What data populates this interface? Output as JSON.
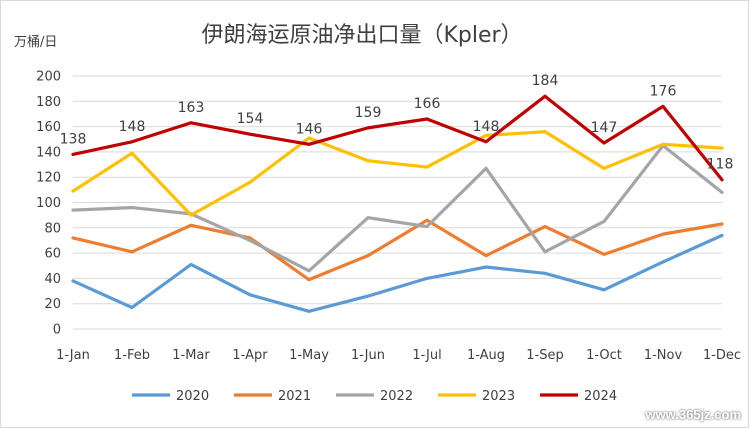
{
  "chart_data": {
    "type": "line",
    "title": "伊朗海运原油净出口量（Kpler）",
    "ylabel": "万桶/日",
    "xlabel": "",
    "ylim": [
      0,
      200
    ],
    "yticks": [
      0,
      20,
      40,
      60,
      80,
      100,
      120,
      140,
      160,
      180,
      200
    ],
    "grid": true,
    "legend_position": "bottom",
    "categories": [
      "1-Jan",
      "1-Feb",
      "1-Mar",
      "1-Apr",
      "1-May",
      "1-Jun",
      "1-Jul",
      "1-Aug",
      "1-Sep",
      "1-Oct",
      "1-Nov",
      "1-Dec"
    ],
    "series": [
      {
        "name": "2020",
        "color": "#5b9bd5",
        "values": [
          38,
          17,
          51,
          27,
          14,
          26,
          40,
          49,
          44,
          31,
          53,
          74
        ]
      },
      {
        "name": "2021",
        "color": "#ed7d31",
        "values": [
          72,
          61,
          82,
          72,
          39,
          58,
          86,
          58,
          81,
          59,
          75,
          83
        ]
      },
      {
        "name": "2022",
        "color": "#a5a5a5",
        "values": [
          94,
          96,
          91,
          70,
          46,
          88,
          81,
          127,
          61,
          85,
          145,
          108
        ]
      },
      {
        "name": "2023",
        "color": "#ffc000",
        "values": [
          109,
          139,
          90,
          116,
          151,
          133,
          128,
          153,
          156,
          127,
          146,
          143
        ]
      },
      {
        "name": "2024",
        "color": "#c00000",
        "values": [
          138,
          148,
          163,
          154,
          146,
          159,
          166,
          148,
          184,
          147,
          176,
          118
        ],
        "data_labels": true
      }
    ]
  },
  "watermark": "www.365jz.com"
}
